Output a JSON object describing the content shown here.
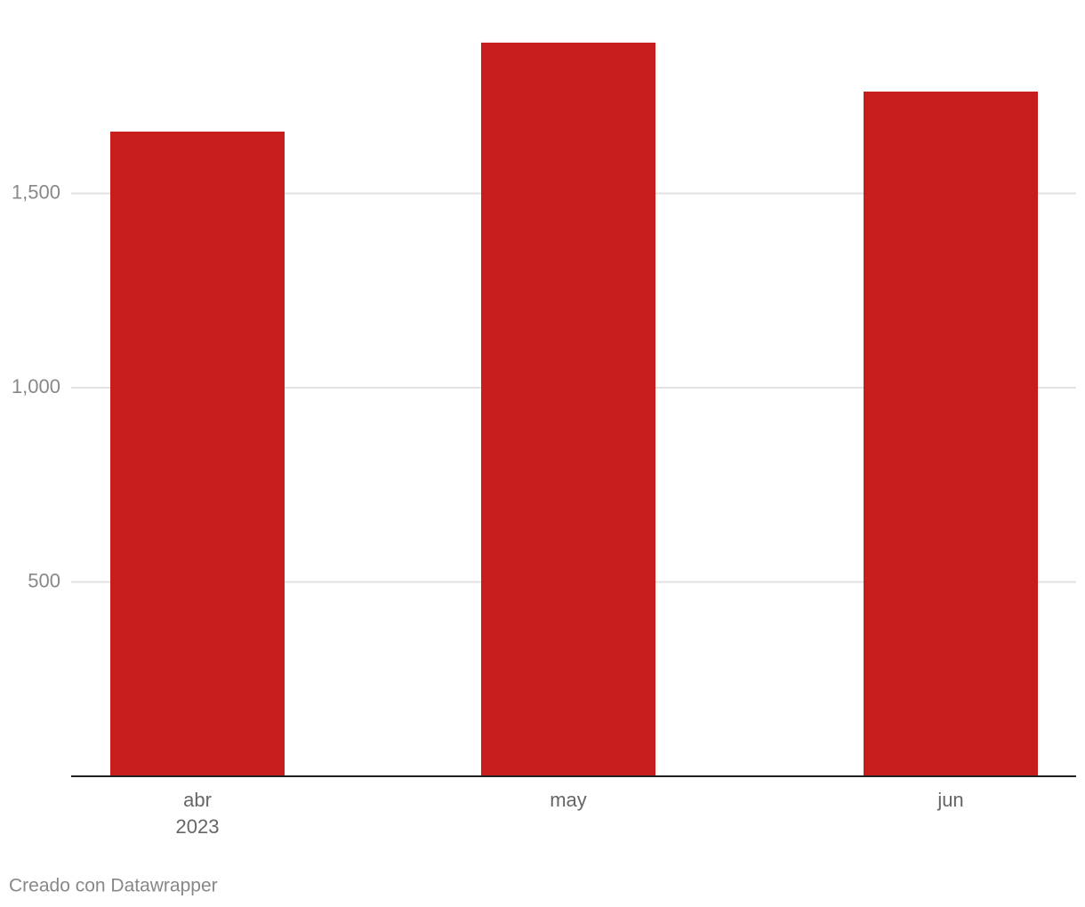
{
  "chart_data": {
    "type": "bar",
    "categories": [
      "abr",
      "may",
      "jun"
    ],
    "year_label": "2023",
    "values": [
      1659,
      1888,
      1762
    ],
    "color": "#c71e1d",
    "ylim": [
      0,
      2000
    ],
    "yticks": [
      500,
      {
        "value": 1000,
        "label": "1,000"
      },
      {
        "value": 1500,
        "label": "1,500"
      }
    ],
    "grid": true,
    "footer": "Creado con Datawrapper"
  }
}
